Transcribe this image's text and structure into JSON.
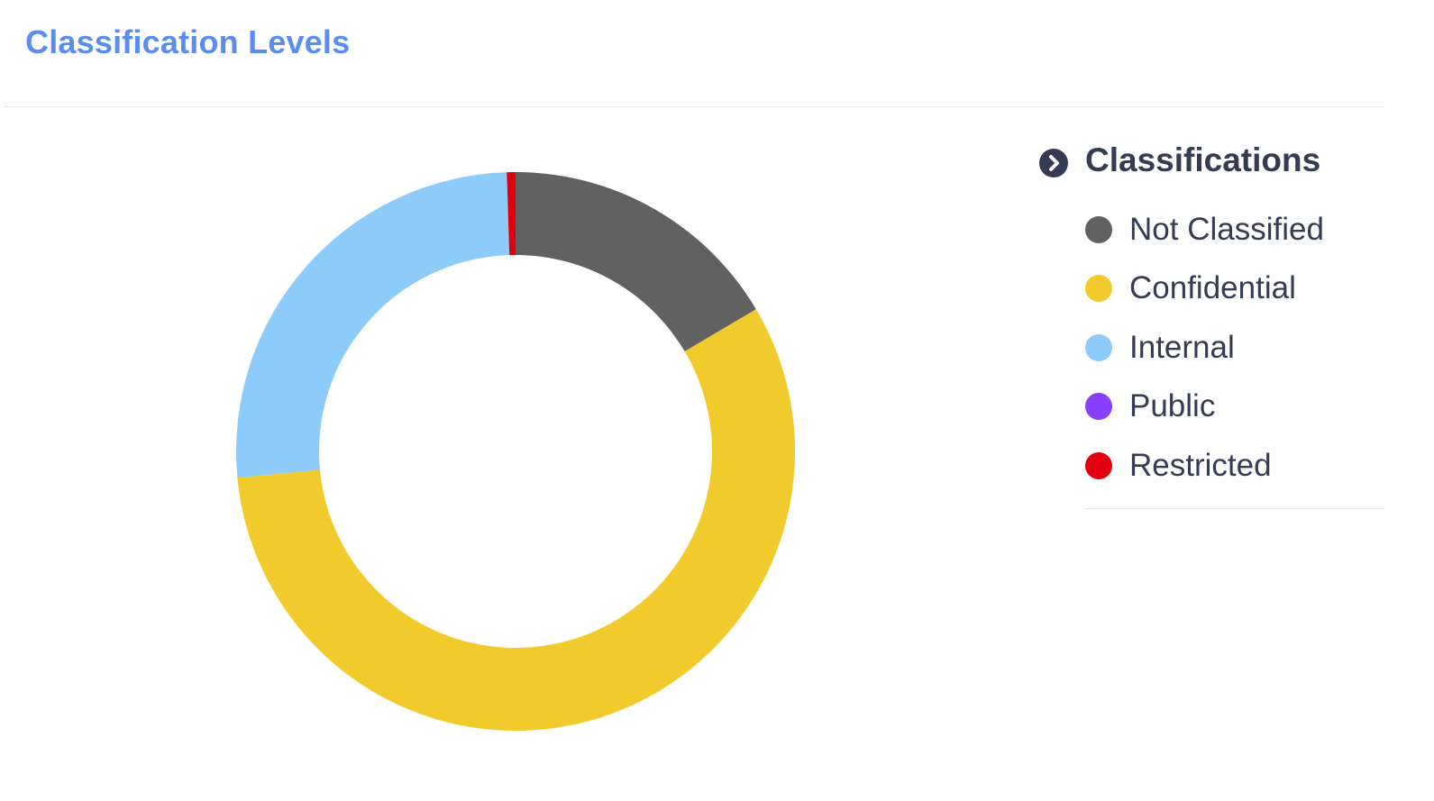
{
  "panel": {
    "title": "Classification Levels"
  },
  "chart_data": {
    "type": "pie",
    "style": "donut",
    "categories": [
      "Not Classified",
      "Confidential",
      "Internal",
      "Public",
      "Restricted"
    ],
    "values": [
      16.5,
      57.0,
      26.0,
      0.0,
      0.5
    ],
    "colors": [
      "#616161",
      "#f1cb2c",
      "#8dcbfb",
      "#8a3ffc",
      "#e0000f"
    ],
    "slice_order": [
      "Not Classified",
      "Confidential",
      "Internal",
      "Public",
      "Restricted"
    ]
  },
  "legend": {
    "title": "Classifications",
    "toggle_icon": "chevron-right-circle-icon",
    "position": "right",
    "items": [
      {
        "label": "Not Classified",
        "color": "#616161"
      },
      {
        "label": "Confidential",
        "color": "#f1cb2c"
      },
      {
        "label": "Internal",
        "color": "#8dcbfb"
      },
      {
        "label": "Public",
        "color": "#8a3ffc"
      },
      {
        "label": "Restricted",
        "color": "#e0000f"
      }
    ]
  }
}
